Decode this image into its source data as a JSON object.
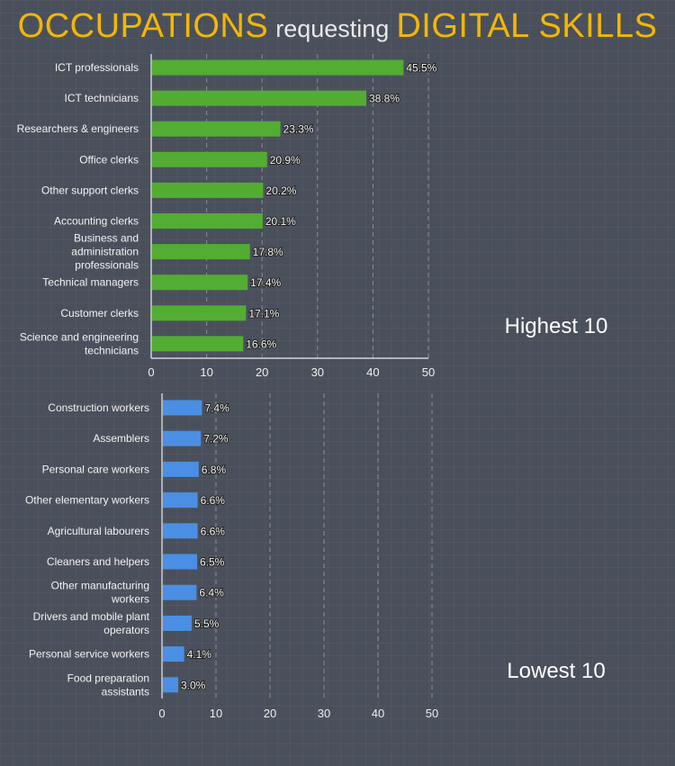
{
  "title": {
    "part1": "OCCUPATIONS",
    "part2": "requesting",
    "part3": "DIGITAL SKILLS"
  },
  "colors": {
    "title": "#f2b705",
    "highest_bar": "#52ad32",
    "lowest_bar": "#4a8fe3",
    "background": "#4a505b"
  },
  "chart_data": [
    {
      "type": "bar",
      "orientation": "horizontal",
      "label": "Highest 10",
      "xlim": [
        0,
        50
      ],
      "xticks": [
        "0",
        "10",
        "20",
        "30",
        "40",
        "50"
      ],
      "grid": "vertical dashed",
      "categories": [
        [
          "ICT professionals"
        ],
        [
          "ICT technicians"
        ],
        [
          "Researchers & engineers"
        ],
        [
          "Office clerks"
        ],
        [
          "Other support clerks"
        ],
        [
          "Accounting clerks"
        ],
        [
          "Business and",
          "administration",
          "professionals"
        ],
        [
          "Technical managers"
        ],
        [
          "Customer clerks"
        ],
        [
          "Science and engineering",
          "technicians"
        ]
      ],
      "values": [
        45.5,
        38.8,
        23.3,
        20.9,
        20.2,
        20.1,
        17.8,
        17.4,
        17.1,
        16.6
      ],
      "value_labels": [
        "45.5%",
        "38.8%",
        "23.3%",
        "20.9%",
        "20.2%",
        "20.1%",
        "17.8%",
        "17.4%",
        "17.1%",
        "16.6%"
      ]
    },
    {
      "type": "bar",
      "orientation": "horizontal",
      "label": "Lowest 10",
      "xlim": [
        0,
        50
      ],
      "xticks": [
        "0",
        "10",
        "20",
        "30",
        "40",
        "50"
      ],
      "grid": "vertical dashed",
      "categories": [
        [
          "Construction workers"
        ],
        [
          "Assemblers"
        ],
        [
          "Personal care workers"
        ],
        [
          "Other elementary workers"
        ],
        [
          "Agricultural labourers"
        ],
        [
          "Cleaners and helpers"
        ],
        [
          "Other manufacturing",
          "workers"
        ],
        [
          "Drivers and mobile plant",
          "operators"
        ],
        [
          "Personal service workers"
        ],
        [
          "Food preparation",
          "assistants"
        ]
      ],
      "values": [
        7.4,
        7.2,
        6.8,
        6.6,
        6.6,
        6.5,
        6.4,
        5.5,
        4.1,
        3.0
      ],
      "value_labels": [
        "7.4%",
        "7.2%",
        "6.8%",
        "6.6%",
        "6.6%",
        "6.5%",
        "6.4%",
        "5.5%",
        "4.1%",
        "3.0%"
      ]
    }
  ]
}
